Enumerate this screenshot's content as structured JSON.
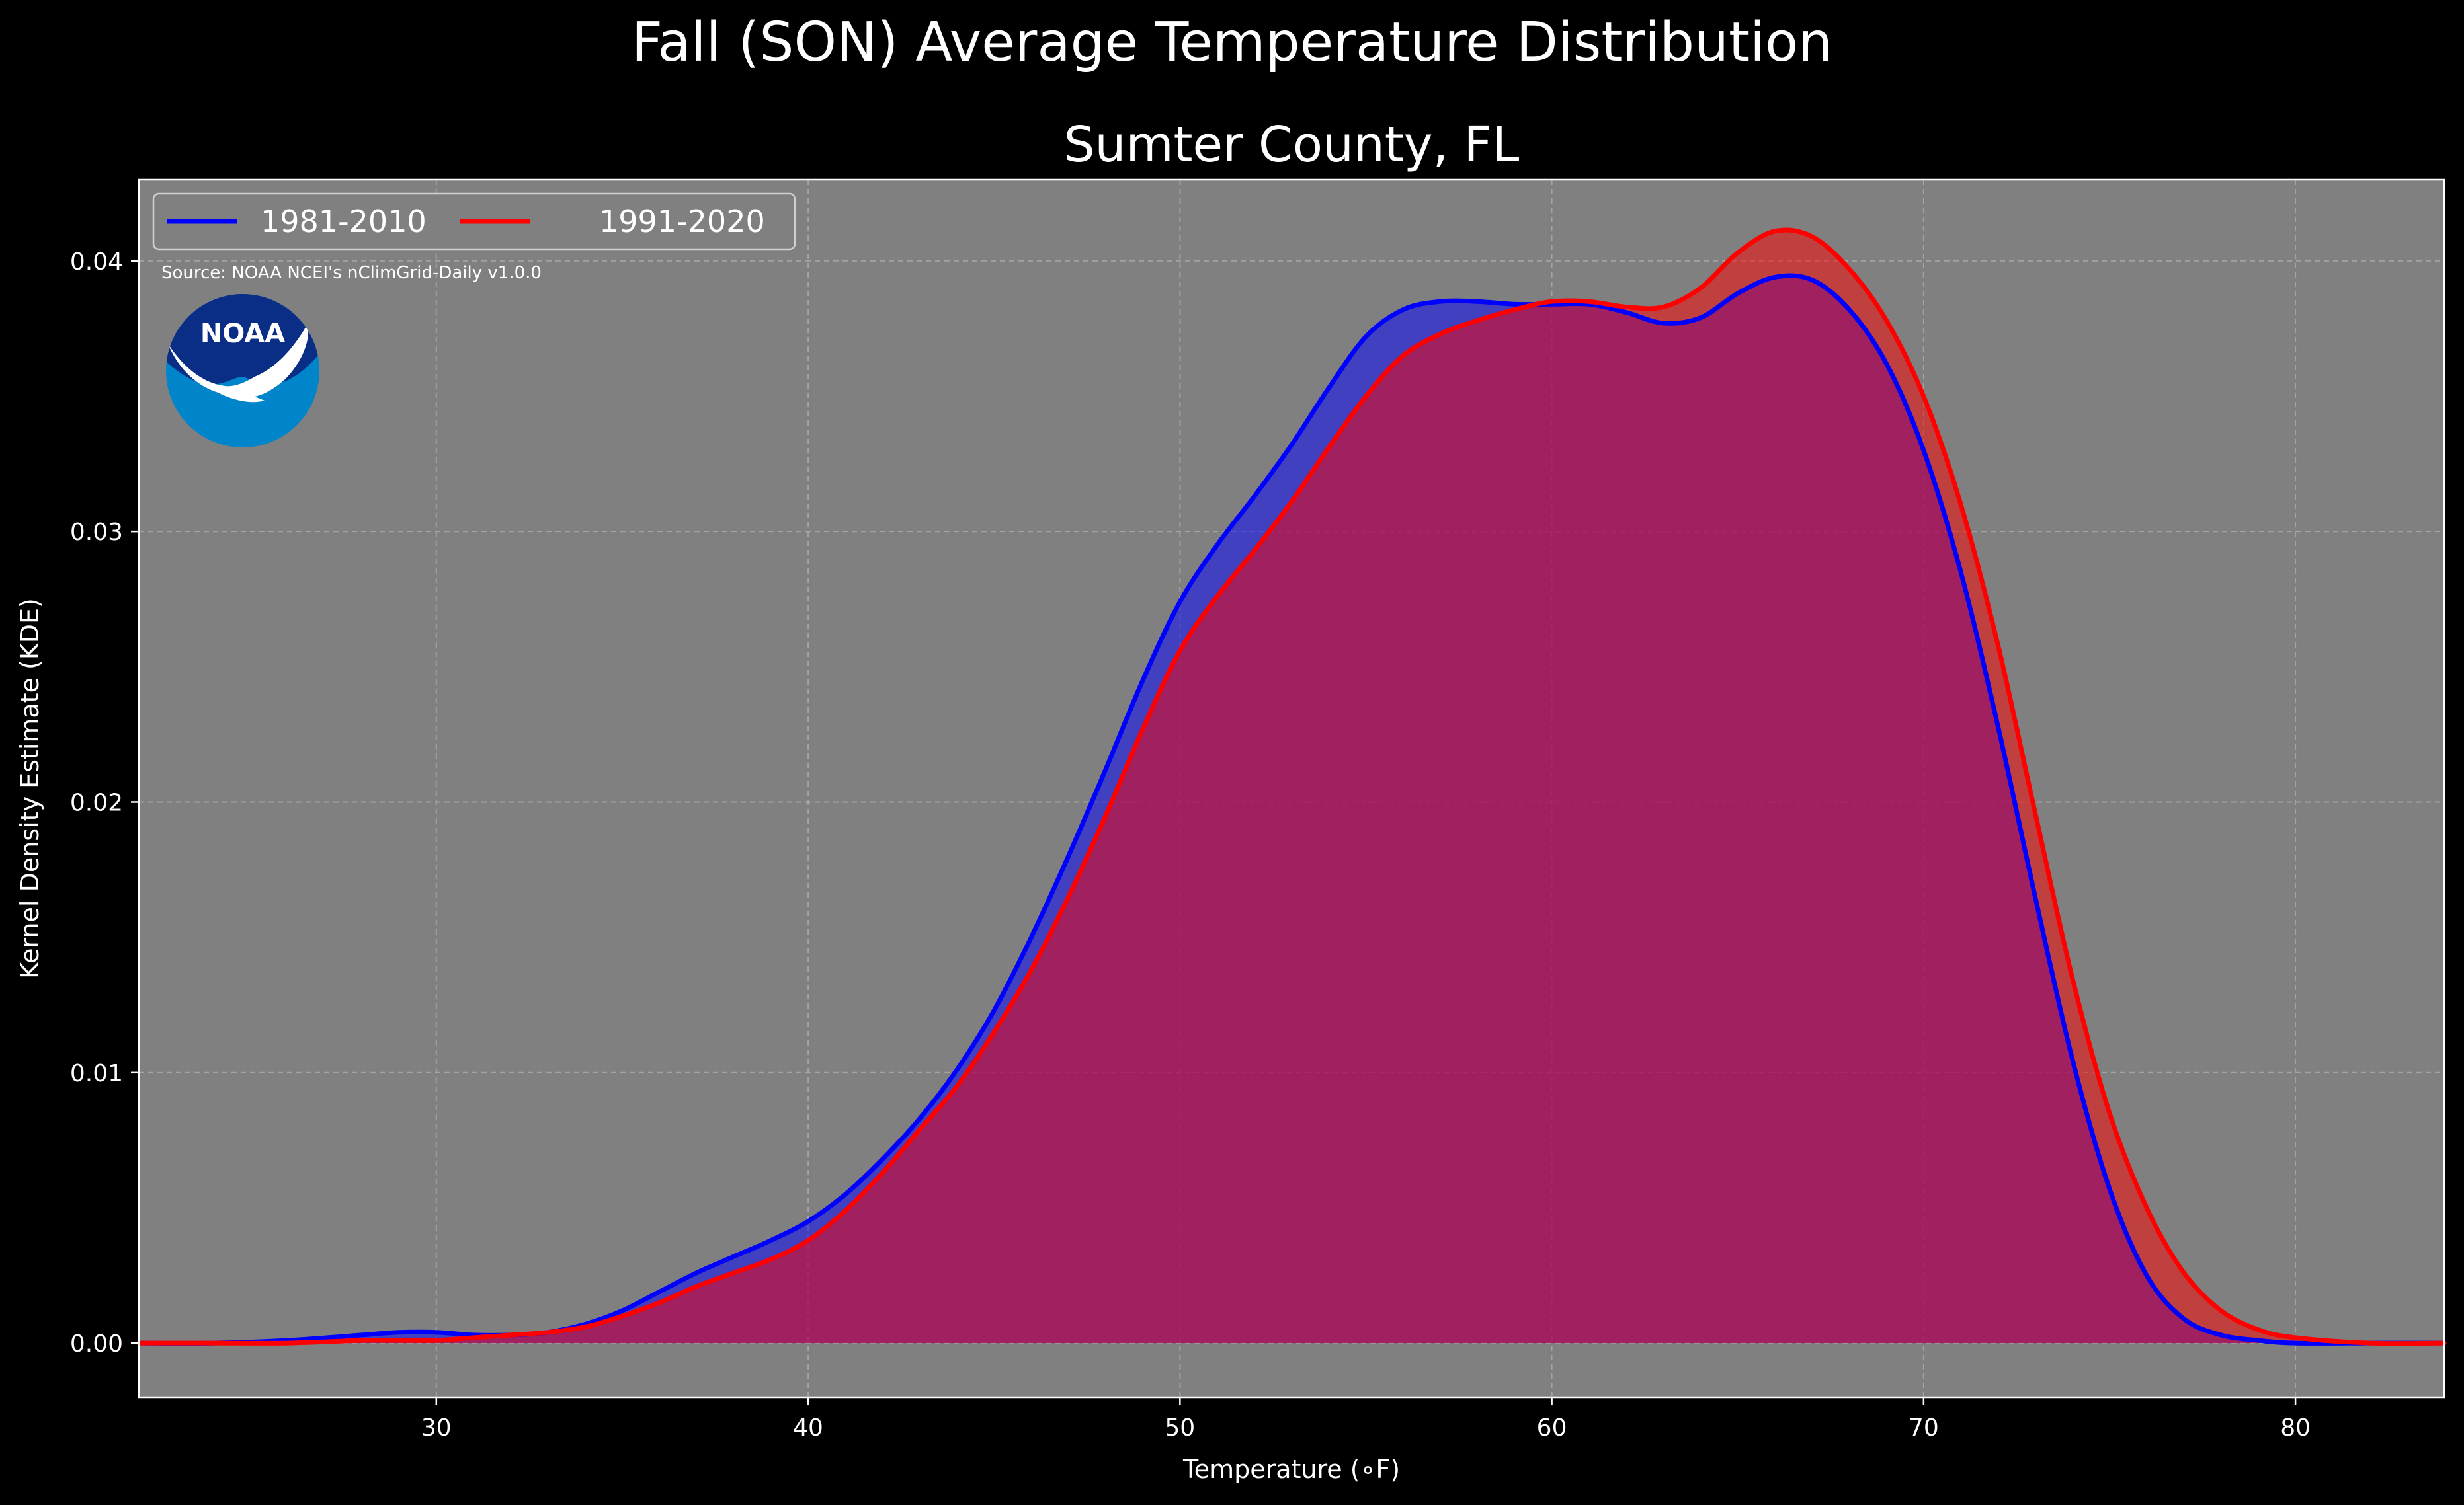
{
  "colors": {
    "background": "#000000",
    "plot_bg": "#808080",
    "grid": "#bfbfbf",
    "series_1981": "#0000ff",
    "series_1991": "#ff0000",
    "noaa_dark": "#0a2e86",
    "noaa_light": "#0085ca"
  },
  "logo": {
    "text": "NOAA",
    "icon": "noaa-logo-icon"
  },
  "chart_data": {
    "type": "area",
    "suptitle": "Fall (SON) Average Temperature Distribution",
    "title": "Sumter County, FL",
    "xlabel": "Temperature ($^\\circ$F)",
    "xlabel_display": "Temperature (∘F)",
    "ylabel": "Kernel Density Estimate (KDE)",
    "source": "Source: NOAA NCEI's nClimGrid-Daily v1.0.0",
    "xlim": [
      22,
      84
    ],
    "ylim": [
      -0.002,
      0.043
    ],
    "xticks": [
      30,
      40,
      50,
      60,
      70,
      80
    ],
    "xtick_labels": [
      "30",
      "40",
      "50",
      "60",
      "70",
      "80"
    ],
    "yticks": [
      0.0,
      0.01,
      0.02,
      0.03,
      0.04
    ],
    "ytick_labels": [
      "0.00",
      "0.01",
      "0.02",
      "0.03",
      "0.04"
    ],
    "grid": true,
    "legend_position": "upper-left",
    "series": [
      {
        "name": "1981-2010",
        "color": "#0000ff",
        "x": [
          22,
          24,
          26,
          28,
          29,
          30,
          31,
          32,
          33,
          34,
          35,
          36,
          37,
          38,
          39,
          40,
          41,
          42,
          43,
          44,
          45,
          46,
          47,
          48,
          49,
          50,
          51,
          52,
          53,
          54,
          55,
          56,
          57,
          58,
          59,
          60,
          61,
          62,
          63,
          64,
          65,
          66,
          67,
          68,
          69,
          70,
          71,
          72,
          73,
          74,
          75,
          76,
          77,
          78,
          79,
          80,
          82,
          84
        ],
        "y": [
          0.0,
          0.0,
          0.0001,
          0.0003,
          0.0004,
          0.0004,
          0.0003,
          0.0003,
          0.0004,
          0.0007,
          0.0012,
          0.0019,
          0.0026,
          0.0032,
          0.0038,
          0.0045,
          0.0055,
          0.0068,
          0.0083,
          0.0101,
          0.0123,
          0.015,
          0.018,
          0.0212,
          0.0245,
          0.0274,
          0.0295,
          0.0313,
          0.0332,
          0.0353,
          0.0372,
          0.0382,
          0.0385,
          0.0385,
          0.0384,
          0.0384,
          0.0384,
          0.0381,
          0.0377,
          0.0379,
          0.0388,
          0.0394,
          0.0393,
          0.0382,
          0.0362,
          0.033,
          0.0285,
          0.0228,
          0.0165,
          0.0105,
          0.0057,
          0.0025,
          0.0009,
          0.0003,
          0.0001,
          0.0,
          0.0,
          0.0
        ]
      },
      {
        "name": "1991-2020",
        "color": "#ff0000",
        "x": [
          22,
          24,
          26,
          28,
          29,
          30,
          31,
          32,
          33,
          34,
          35,
          36,
          37,
          38,
          39,
          40,
          41,
          42,
          43,
          44,
          45,
          46,
          47,
          48,
          49,
          50,
          51,
          52,
          53,
          54,
          55,
          56,
          57,
          58,
          59,
          60,
          61,
          62,
          63,
          64,
          65,
          66,
          67,
          68,
          69,
          70,
          71,
          72,
          73,
          74,
          75,
          76,
          77,
          78,
          79,
          80,
          82,
          84
        ],
        "y": [
          0.0,
          0.0,
          0.0,
          0.0001,
          0.0001,
          0.0001,
          0.0002,
          0.0003,
          0.0004,
          0.0006,
          0.001,
          0.0015,
          0.0021,
          0.0026,
          0.0031,
          0.0038,
          0.0049,
          0.0063,
          0.0079,
          0.0095,
          0.0115,
          0.0138,
          0.0165,
          0.0195,
          0.0227,
          0.0256,
          0.0276,
          0.0293,
          0.0311,
          0.0331,
          0.035,
          0.0365,
          0.0373,
          0.0378,
          0.0382,
          0.0385,
          0.0385,
          0.0383,
          0.0383,
          0.039,
          0.0403,
          0.0411,
          0.0409,
          0.0397,
          0.0378,
          0.035,
          0.031,
          0.0258,
          0.0196,
          0.0135,
          0.0085,
          0.005,
          0.0026,
          0.0012,
          0.0005,
          0.0002,
          0.0,
          0.0
        ]
      }
    ]
  }
}
